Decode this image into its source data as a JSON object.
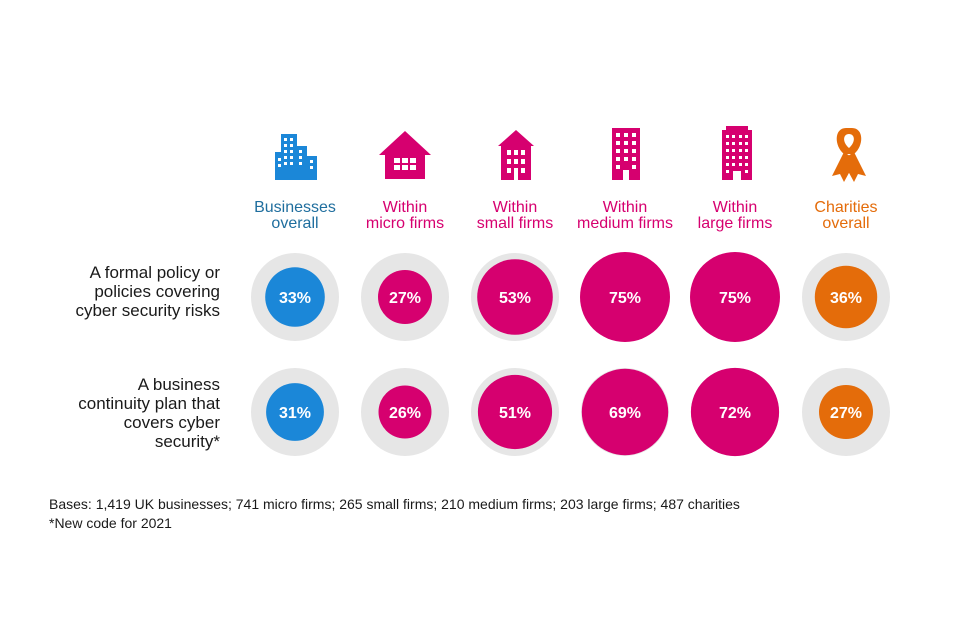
{
  "colors": {
    "businesses": "#1b87d8",
    "businesses_label": "#1f6e9e",
    "firms": "#d6006f",
    "charities": "#e46c0a",
    "circle_bg": "#e6e6e6"
  },
  "columns": [
    {
      "key": "businesses",
      "line1": "Businesses",
      "line2": "overall",
      "icon": "office-buildings-icon",
      "color": "#1f6e9e"
    },
    {
      "key": "micro",
      "line1": "Within",
      "line2": "micro firms",
      "icon": "house-icon",
      "color": "#d6006f"
    },
    {
      "key": "small",
      "line1": "Within",
      "line2": "small  firms",
      "icon": "small-building-icon",
      "color": "#d6006f"
    },
    {
      "key": "medium",
      "line1": "Within",
      "line2": "medium  firms",
      "icon": "medium-building-icon",
      "color": "#d6006f"
    },
    {
      "key": "large",
      "line1": "Within",
      "line2": "large firms",
      "icon": "tower-building-icon",
      "color": "#d6006f"
    },
    {
      "key": "charities",
      "line1": "Charities",
      "line2": "overall",
      "icon": "ribbon-icon",
      "color": "#e46c0a"
    }
  ],
  "chart_data": {
    "type": "table",
    "series": [
      {
        "lines": [
          "A formal policy or",
          "policies covering",
          "cyber security risks"
        ],
        "values": [
          33,
          27,
          53,
          75,
          75,
          36
        ],
        "labels": [
          "33%",
          "27%",
          "53%",
          "75%",
          "75%",
          "36%"
        ]
      },
      {
        "lines": [
          "A business",
          "continuity plan that",
          "covers cyber",
          "security*"
        ],
        "values": [
          31,
          26,
          51,
          69,
          72,
          27
        ],
        "labels": [
          "31%",
          "26%",
          "51%",
          "69%",
          "72%",
          "27%"
        ]
      }
    ]
  },
  "footnotes": {
    "bases": "Bases: 1,419 UK businesses; 741 micro firms; 265 small firms; 210 medium firms; 203 large firms; 487 charities",
    "note": "*New code for 2021"
  }
}
